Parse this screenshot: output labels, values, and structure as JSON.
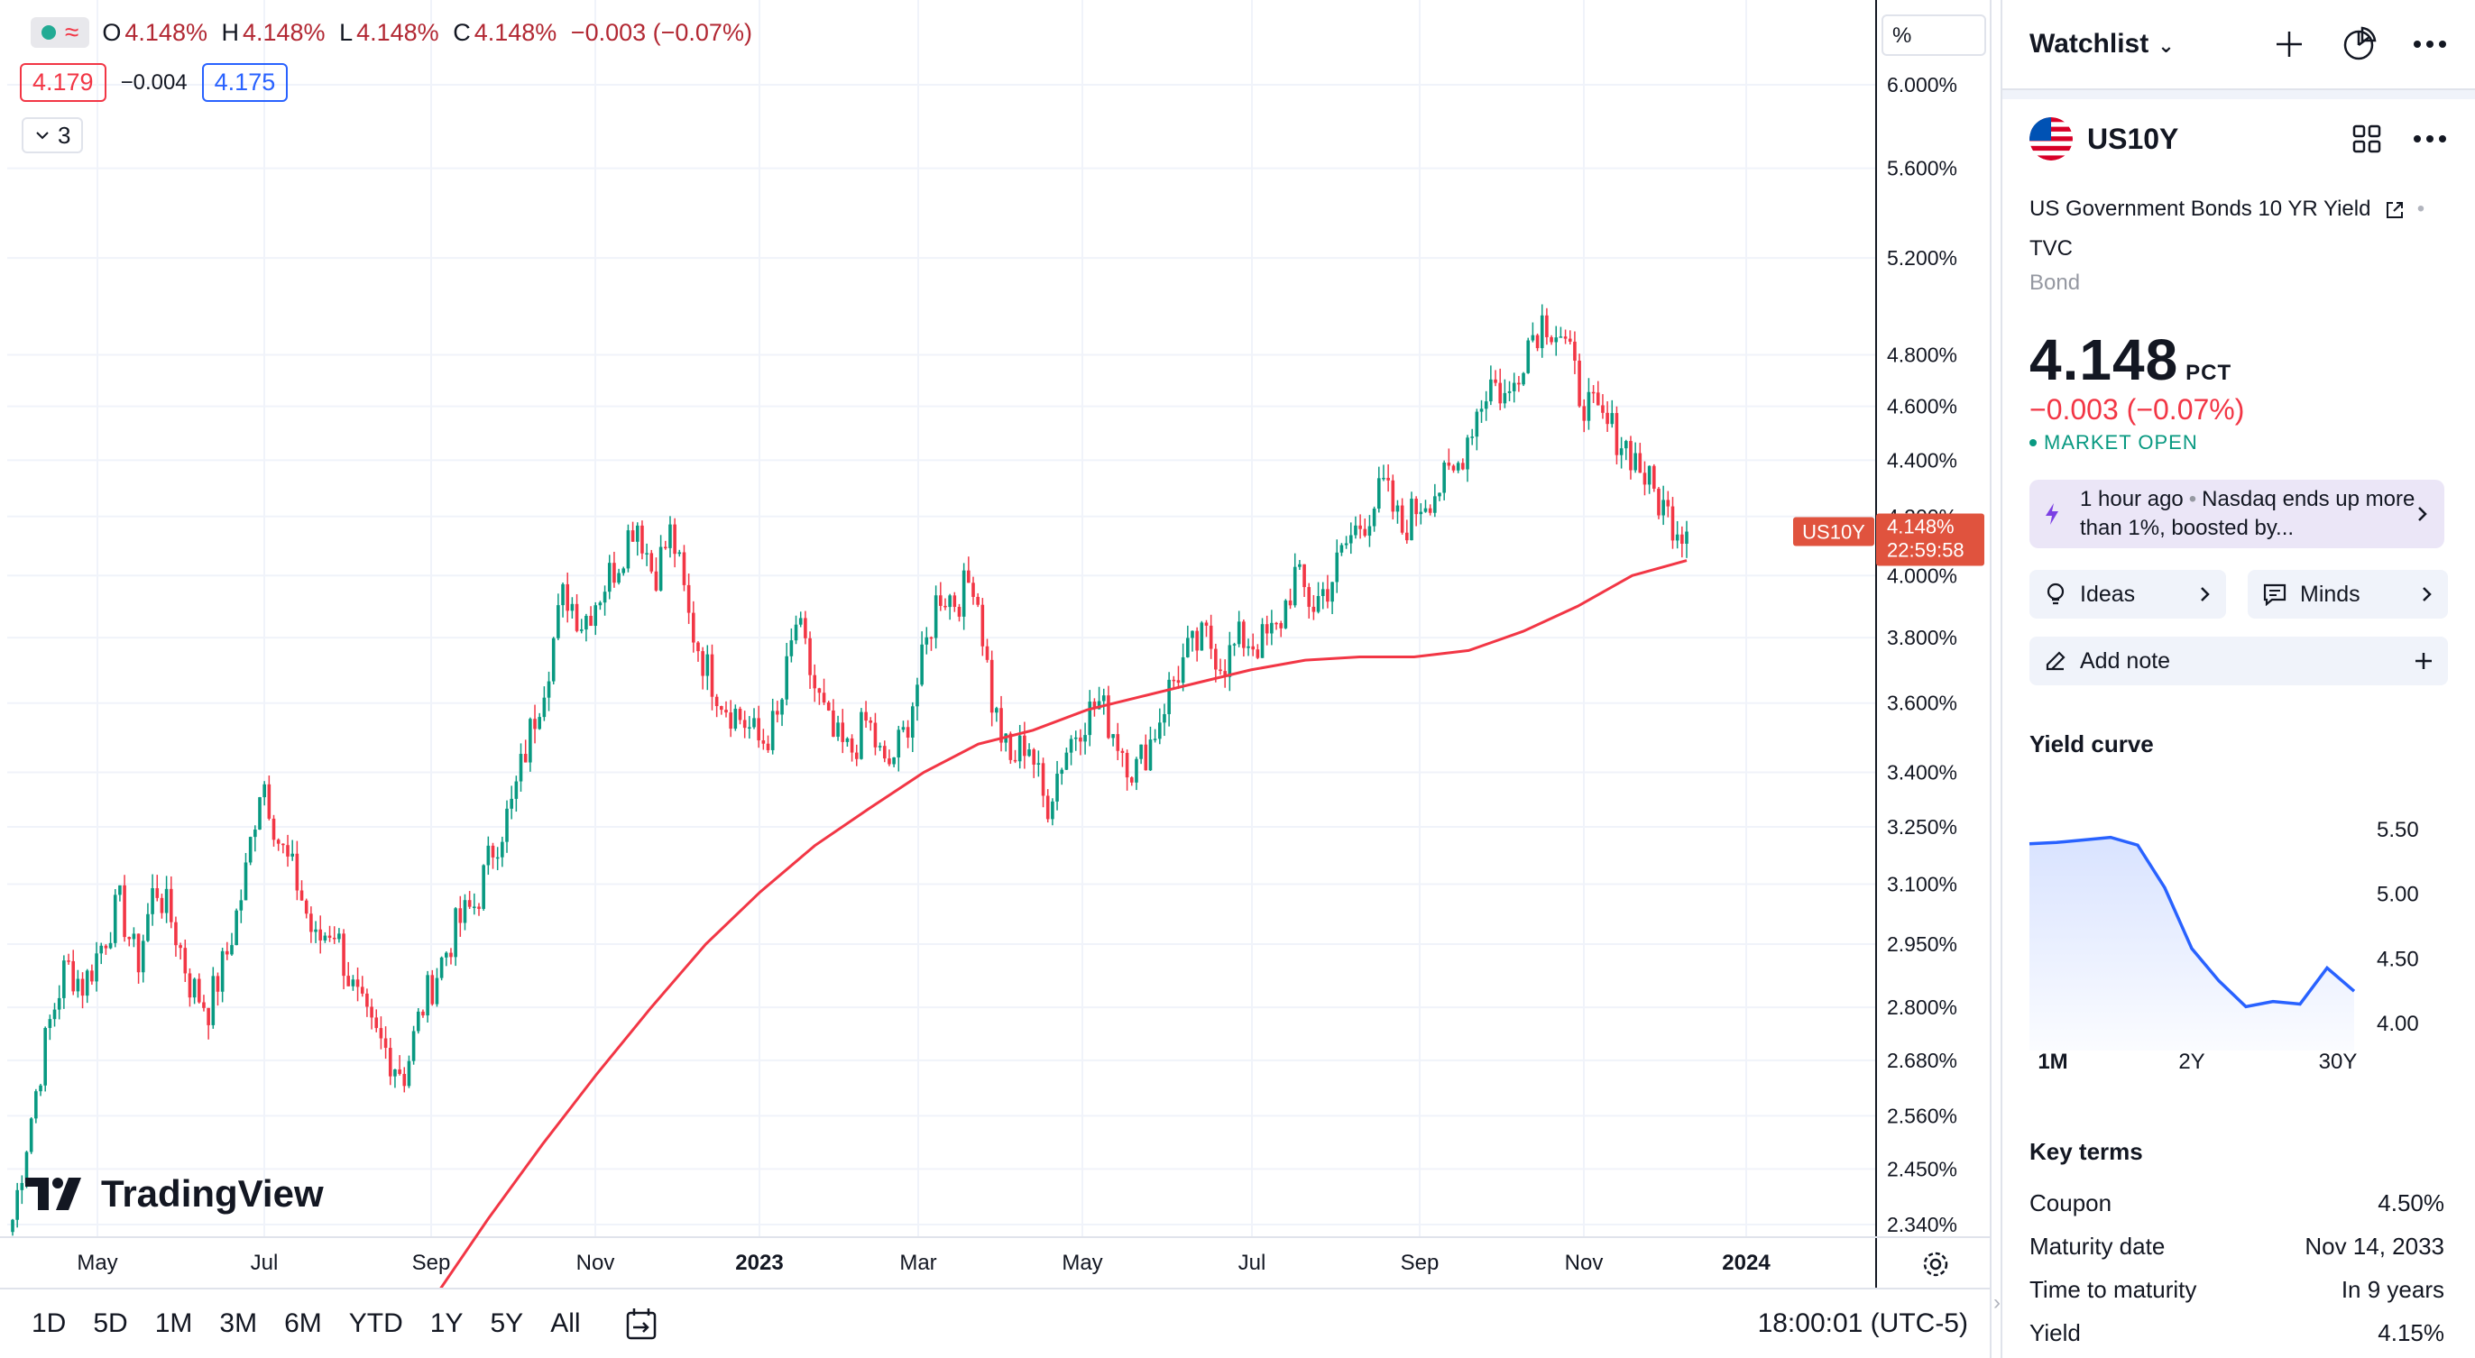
{
  "legend": {
    "open": "4.148%",
    "high": "4.148%",
    "low": "4.148%",
    "close": "4.148%",
    "open_label": "O",
    "high_label": "H",
    "low_label": "L",
    "close_label": "C",
    "change": "−0.003 (−0.07%)",
    "bid": "4.179",
    "spread": "−0.004",
    "ask": "4.175",
    "indicators_count": "3",
    "approx_glyph": "≈"
  },
  "price_scale": {
    "mode_label": "%",
    "ticks": [
      "6.000%",
      "5.600%",
      "5.200%",
      "4.800%",
      "4.600%",
      "4.400%",
      "4.200%",
      "4.000%",
      "3.800%",
      "3.600%",
      "3.400%",
      "3.250%",
      "3.100%",
      "2.950%",
      "2.800%",
      "2.680%",
      "2.560%",
      "2.450%",
      "2.340%"
    ],
    "current_symbol": "US10Y",
    "current_value": "4.148%",
    "countdown": "22:59:58"
  },
  "time_axis": {
    "labels": [
      "May",
      "Jul",
      "Sep",
      "Nov",
      "2023",
      "Mar",
      "May",
      "Jul",
      "Sep",
      "Nov",
      "2024"
    ]
  },
  "logo_text": "TradingView",
  "bottom_bar": {
    "ranges": [
      "1D",
      "5D",
      "1M",
      "3M",
      "6M",
      "YTD",
      "1Y",
      "5Y",
      "All"
    ],
    "clock": "18:00:01 (UTC-5)"
  },
  "chart_data": {
    "type": "candlestick",
    "x_range": [
      "2022-04",
      "2023-12"
    ],
    "ylim": [
      2.28,
      6.1
    ],
    "y_scale": "log",
    "grid": true,
    "weekly_closes_approx": [
      2.35,
      2.55,
      2.75,
      2.9,
      2.85,
      2.95,
      3.05,
      2.9,
      3.1,
      3.0,
      2.85,
      2.8,
      2.92,
      3.1,
      3.4,
      3.2,
      3.1,
      2.95,
      3.0,
      2.85,
      2.75,
      2.7,
      2.65,
      2.8,
      2.9,
      3.0,
      3.05,
      3.2,
      3.3,
      3.5,
      3.7,
      3.95,
      3.85,
      3.95,
      4.05,
      4.2,
      4.0,
      4.15,
      3.85,
      3.7,
      3.6,
      3.55,
      3.48,
      3.55,
      3.85,
      3.65,
      3.5,
      3.45,
      3.55,
      3.4,
      3.5,
      3.7,
      3.95,
      3.92,
      4.0,
      3.6,
      3.42,
      3.5,
      3.3,
      3.45,
      3.55,
      3.6,
      3.5,
      3.4,
      3.5,
      3.65,
      3.75,
      3.8,
      3.72,
      3.8,
      3.78,
      3.82,
      4.0,
      3.9,
      3.98,
      4.12,
      4.2,
      4.3,
      4.15,
      4.25,
      4.3,
      4.35,
      4.55,
      4.7,
      4.62,
      4.85,
      4.95,
      4.88,
      4.65,
      4.55,
      4.5,
      4.42,
      4.3,
      4.2,
      4.148
    ],
    "moving_average": {
      "color": "#f23645",
      "values_approx": [
        2.1,
        2.2,
        2.35,
        2.5,
        2.65,
        2.8,
        2.95,
        3.08,
        3.2,
        3.3,
        3.4,
        3.48,
        3.52,
        3.58,
        3.62,
        3.66,
        3.7,
        3.73,
        3.74,
        3.74,
        3.76,
        3.82,
        3.9,
        4.0,
        4.05
      ]
    }
  },
  "watchlist": {
    "title": "Watchlist",
    "symbol": "US10Y",
    "description": "US Government Bonds 10 YR Yield",
    "exchange": "TVC",
    "type": "Bond",
    "price": "4.148",
    "unit": "PCT",
    "change": "−0.003 (−0.07%)",
    "market_status": "MARKET OPEN",
    "news_time": "1 hour ago",
    "news_headline": "Nasdaq ends up more than 1%, boosted by...",
    "ideas_label": "Ideas",
    "minds_label": "Minds",
    "add_note_label": "Add note",
    "yield_curve_title": "Yield curve",
    "key_terms_title": "Key terms",
    "key_terms": [
      {
        "label": "Coupon",
        "value": "4.50%"
      },
      {
        "label": "Maturity date",
        "value": "Nov 14, 2033"
      },
      {
        "label": "Time to maturity",
        "value": "In 9 years"
      },
      {
        "label": "Yield",
        "value": "4.15%"
      }
    ]
  },
  "yield_curve": {
    "type": "line",
    "x_labels": [
      "1M",
      "2Y",
      "30Y"
    ],
    "y_ticks": [
      "5.50",
      "5.00",
      "4.50",
      "4.00"
    ],
    "ylim": [
      4.0,
      5.5
    ],
    "values": [
      5.39,
      5.4,
      5.42,
      5.44,
      5.38,
      5.05,
      4.58,
      4.33,
      4.13,
      4.17,
      4.15,
      4.43,
      4.25
    ],
    "line_color": "#2962ff"
  }
}
